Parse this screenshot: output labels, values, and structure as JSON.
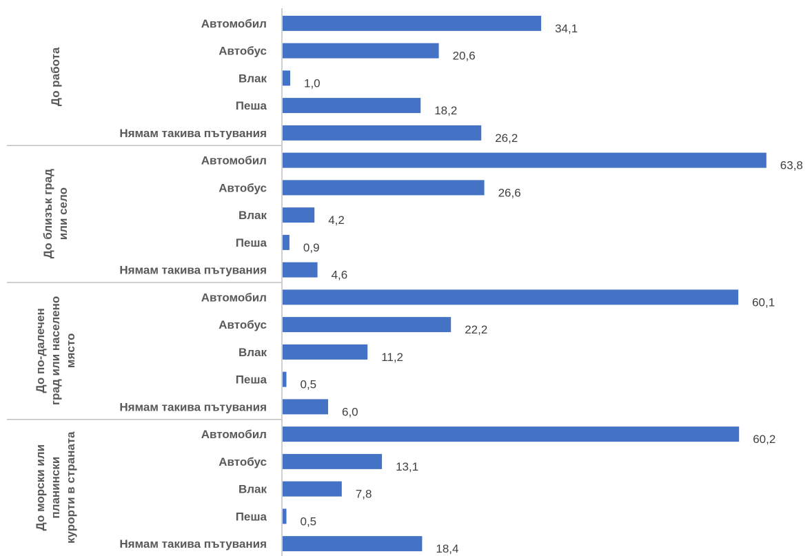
{
  "chart_data": {
    "type": "bar",
    "orientation": "horizontal",
    "title": "",
    "xlabel": "",
    "ylabel": "",
    "xlim": [
      0,
      65
    ],
    "grid": false,
    "legend": "none",
    "bar_color": "#4472c4",
    "groups": [
      {
        "label_lines": [
          "До работа"
        ],
        "categories": [
          "Автомобил",
          "Автобус",
          "Влак",
          "Пеша",
          "Нямам такива пътувания"
        ],
        "values": [
          34.1,
          20.6,
          1.0,
          18.2,
          26.2
        ],
        "value_labels": [
          "34,1",
          "20,6",
          "1,0",
          "18,2",
          "26,2"
        ]
      },
      {
        "label_lines": [
          "До близък град",
          "или село"
        ],
        "categories": [
          "Автомобил",
          "Автобус",
          "Влак",
          "Пеша",
          "Нямам такива пътувания"
        ],
        "values": [
          63.8,
          26.6,
          4.2,
          0.9,
          4.6
        ],
        "value_labels": [
          "63,8",
          "26,6",
          "4,2",
          "0,9",
          "4,6"
        ]
      },
      {
        "label_lines": [
          "До по-далечен",
          "град или населено",
          "място"
        ],
        "categories": [
          "Автомобил",
          "Автобус",
          "Влак",
          "Пеша",
          "Нямам такива пътувания"
        ],
        "values": [
          60.1,
          22.2,
          11.2,
          0.5,
          6.0
        ],
        "value_labels": [
          "60,1",
          "22,2",
          "11,2",
          "0,5",
          "6,0"
        ]
      },
      {
        "label_lines": [
          "До морски или",
          "планински",
          "курорти в страната"
        ],
        "categories": [
          "Автомобил",
          "Автобус",
          "Влак",
          "Пеша",
          "Нямам такива пътувания"
        ],
        "values": [
          60.2,
          13.1,
          7.8,
          0.5,
          18.4
        ],
        "value_labels": [
          "60,2",
          "13,1",
          "7,8",
          "0,5",
          "18,4"
        ]
      }
    ]
  }
}
